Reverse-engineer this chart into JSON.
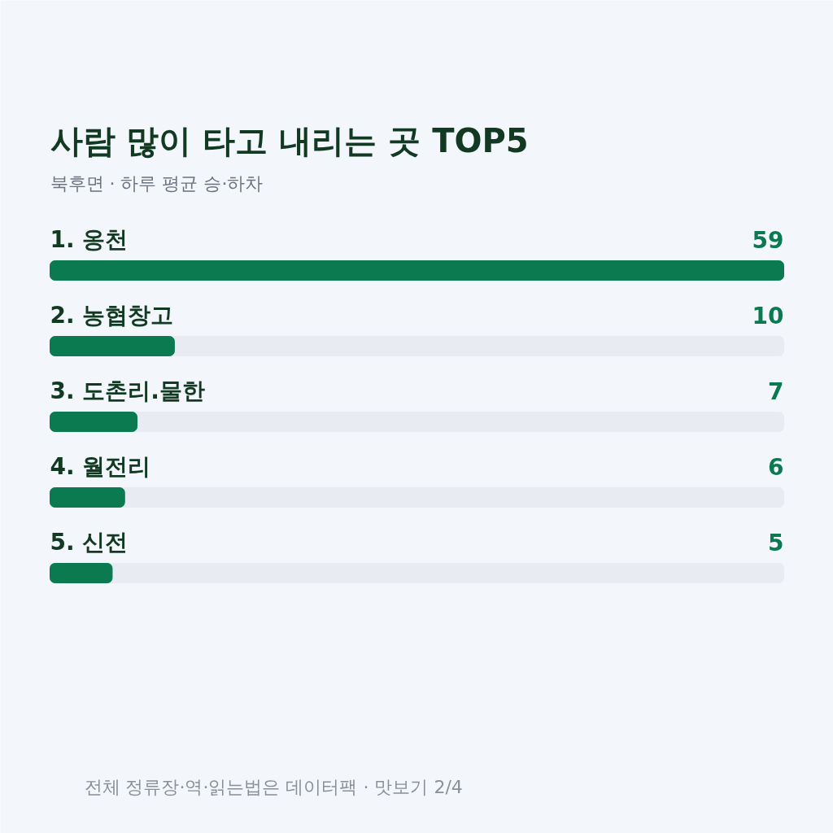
{
  "chart_data": {
    "type": "bar",
    "orientation": "horizontal",
    "title": "사람 많이 타고 내리는 곳 TOP5",
    "subtitle": "북후면 · 하루 평균 승·하차",
    "categories": [
      "1. 옹천",
      "2. 농협창고",
      "3. 도촌리.물한",
      "4. 월전리",
      "5. 신전"
    ],
    "values": [
      59,
      10,
      7,
      6,
      5
    ],
    "color": "#0b7a50",
    "data_labels": true,
    "annotations": [
      "전체 정류장·역·읽는법은 데이터팩 · 맛보기 2/4"
    ]
  }
}
